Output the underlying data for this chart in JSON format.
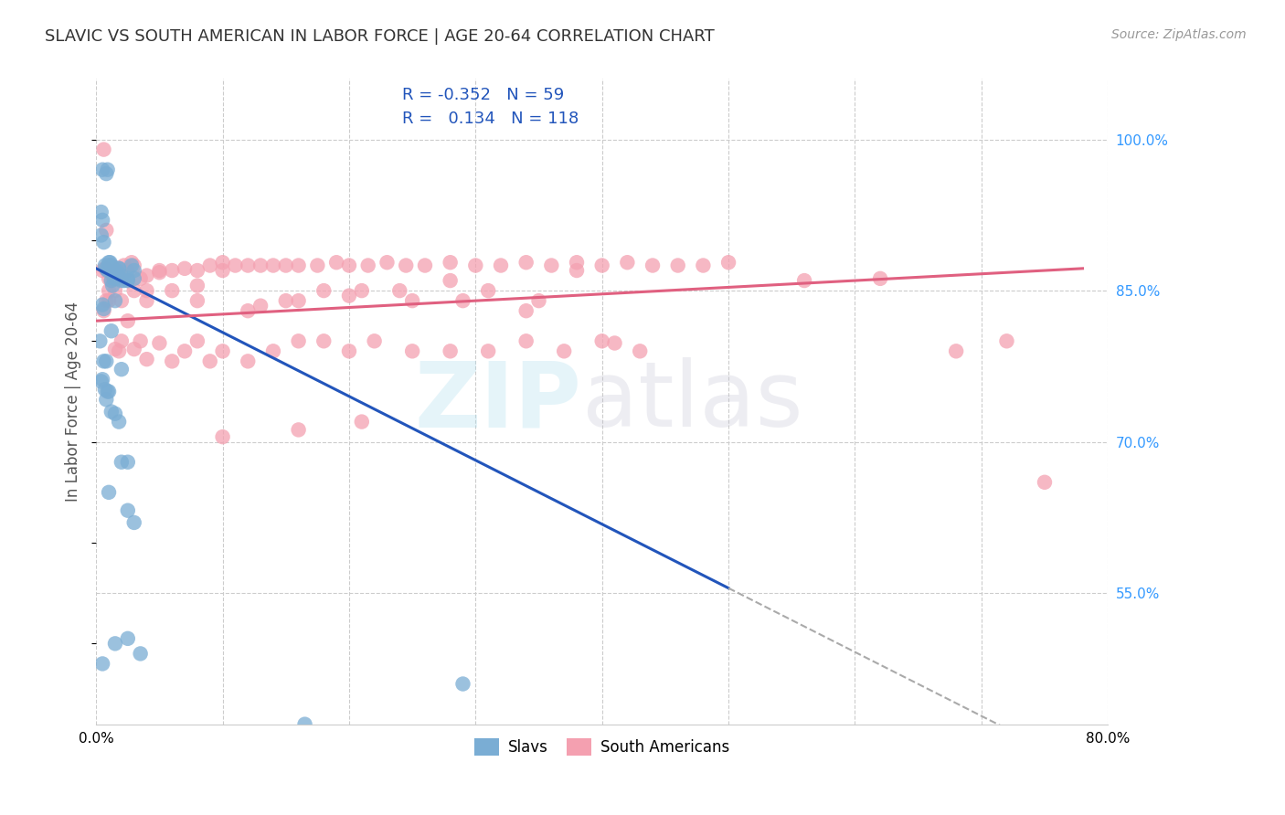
{
  "title": "SLAVIC VS SOUTH AMERICAN IN LABOR FORCE | AGE 20-64 CORRELATION CHART",
  "source": "Source: ZipAtlas.com",
  "ylabel": "In Labor Force | Age 20-64",
  "y_tick_labels_right": [
    "55.0%",
    "70.0%",
    "85.0%",
    "100.0%"
  ],
  "x_min": 0.0,
  "x_max": 0.8,
  "y_min": 0.42,
  "y_max": 1.06,
  "right_y_ticks": [
    0.55,
    0.7,
    0.85,
    1.0
  ],
  "x_ticks": [
    0.0,
    0.1,
    0.2,
    0.3,
    0.4,
    0.5,
    0.6,
    0.7,
    0.8
  ],
  "legend_R_slavs": "-0.352",
  "legend_N_slavs": "59",
  "legend_R_south": "0.134",
  "legend_N_south": "118",
  "slav_color": "#7AADD4",
  "south_color": "#F4A0B0",
  "slav_line_color": "#2255BB",
  "south_line_color": "#E06080",
  "background_color": "#ffffff",
  "grid_color": "#cccccc",
  "title_color": "#333333",
  "right_label_color": "#3399FF",
  "slav_line_x0": 0.0,
  "slav_line_y0": 0.872,
  "slav_line_x1": 0.5,
  "slav_line_y1": 0.555,
  "slav_line_solid_end": 0.5,
  "slav_line_dashed_end": 0.8,
  "south_line_x0": 0.0,
  "south_line_y0": 0.82,
  "south_line_x1": 0.78,
  "south_line_y1": 0.872,
  "slavs_x": [
    0.005,
    0.008,
    0.009,
    0.01,
    0.011,
    0.012,
    0.013,
    0.014,
    0.015,
    0.016,
    0.018,
    0.02,
    0.022,
    0.025,
    0.028,
    0.03,
    0.004,
    0.005,
    0.006,
    0.007,
    0.008,
    0.009,
    0.01,
    0.012,
    0.014,
    0.016,
    0.018,
    0.02,
    0.025,
    0.03,
    0.003,
    0.004,
    0.005,
    0.006,
    0.007,
    0.008,
    0.009,
    0.01,
    0.012,
    0.015,
    0.018,
    0.02,
    0.025,
    0.004,
    0.005,
    0.006,
    0.008,
    0.01,
    0.012,
    0.015,
    0.02,
    0.025,
    0.03,
    0.035,
    0.29,
    0.005,
    0.015,
    0.025,
    0.165
  ],
  "slavs_y": [
    0.97,
    0.966,
    0.97,
    0.875,
    0.878,
    0.86,
    0.855,
    0.87,
    0.868,
    0.862,
    0.872,
    0.865,
    0.86,
    0.862,
    0.875,
    0.87,
    0.928,
    0.92,
    0.898,
    0.875,
    0.872,
    0.87,
    0.878,
    0.875,
    0.862,
    0.87,
    0.872,
    0.86,
    0.86,
    0.862,
    0.8,
    0.76,
    0.762,
    0.78,
    0.752,
    0.742,
    0.75,
    0.75,
    0.73,
    0.728,
    0.72,
    0.68,
    0.632,
    0.905,
    0.836,
    0.832,
    0.78,
    0.65,
    0.81,
    0.84,
    0.772,
    0.68,
    0.62,
    0.49,
    0.46,
    0.48,
    0.5,
    0.505,
    0.42
  ],
  "south_x": [
    0.005,
    0.007,
    0.009,
    0.01,
    0.012,
    0.014,
    0.016,
    0.018,
    0.02,
    0.022,
    0.025,
    0.028,
    0.03,
    0.035,
    0.04,
    0.05,
    0.06,
    0.07,
    0.08,
    0.09,
    0.1,
    0.11,
    0.12,
    0.13,
    0.14,
    0.15,
    0.16,
    0.175,
    0.19,
    0.2,
    0.215,
    0.23,
    0.245,
    0.26,
    0.28,
    0.3,
    0.32,
    0.34,
    0.36,
    0.38,
    0.4,
    0.42,
    0.44,
    0.46,
    0.48,
    0.5,
    0.006,
    0.008,
    0.01,
    0.012,
    0.015,
    0.018,
    0.02,
    0.025,
    0.03,
    0.035,
    0.04,
    0.05,
    0.06,
    0.07,
    0.08,
    0.09,
    0.1,
    0.12,
    0.14,
    0.16,
    0.18,
    0.2,
    0.22,
    0.25,
    0.28,
    0.31,
    0.34,
    0.37,
    0.4,
    0.43,
    0.006,
    0.008,
    0.01,
    0.015,
    0.02,
    0.025,
    0.03,
    0.04,
    0.05,
    0.06,
    0.08,
    0.1,
    0.12,
    0.15,
    0.18,
    0.21,
    0.25,
    0.28,
    0.31,
    0.35,
    0.38,
    0.41,
    0.34,
    0.29,
    0.24,
    0.2,
    0.16,
    0.13,
    0.08,
    0.04,
    0.56,
    0.62,
    0.68,
    0.72,
    0.75,
    0.16,
    0.21,
    0.1
  ],
  "south_y": [
    0.87,
    0.872,
    0.87,
    0.862,
    0.875,
    0.862,
    0.87,
    0.872,
    0.862,
    0.875,
    0.87,
    0.878,
    0.875,
    0.862,
    0.865,
    0.868,
    0.87,
    0.872,
    0.87,
    0.875,
    0.878,
    0.875,
    0.875,
    0.875,
    0.875,
    0.875,
    0.875,
    0.875,
    0.878,
    0.875,
    0.875,
    0.878,
    0.875,
    0.875,
    0.878,
    0.875,
    0.875,
    0.878,
    0.875,
    0.878,
    0.875,
    0.878,
    0.875,
    0.875,
    0.875,
    0.878,
    0.99,
    0.91,
    0.84,
    0.86,
    0.792,
    0.79,
    0.8,
    0.82,
    0.792,
    0.8,
    0.782,
    0.798,
    0.78,
    0.79,
    0.8,
    0.78,
    0.79,
    0.78,
    0.79,
    0.8,
    0.8,
    0.79,
    0.8,
    0.79,
    0.79,
    0.79,
    0.8,
    0.79,
    0.8,
    0.79,
    0.83,
    0.84,
    0.85,
    0.85,
    0.84,
    0.86,
    0.85,
    0.84,
    0.87,
    0.85,
    0.84,
    0.87,
    0.83,
    0.84,
    0.85,
    0.85,
    0.84,
    0.86,
    0.85,
    0.84,
    0.87,
    0.798,
    0.83,
    0.84,
    0.85,
    0.845,
    0.84,
    0.835,
    0.855,
    0.85,
    0.86,
    0.862,
    0.79,
    0.8,
    0.66,
    0.712,
    0.72,
    0.705
  ]
}
